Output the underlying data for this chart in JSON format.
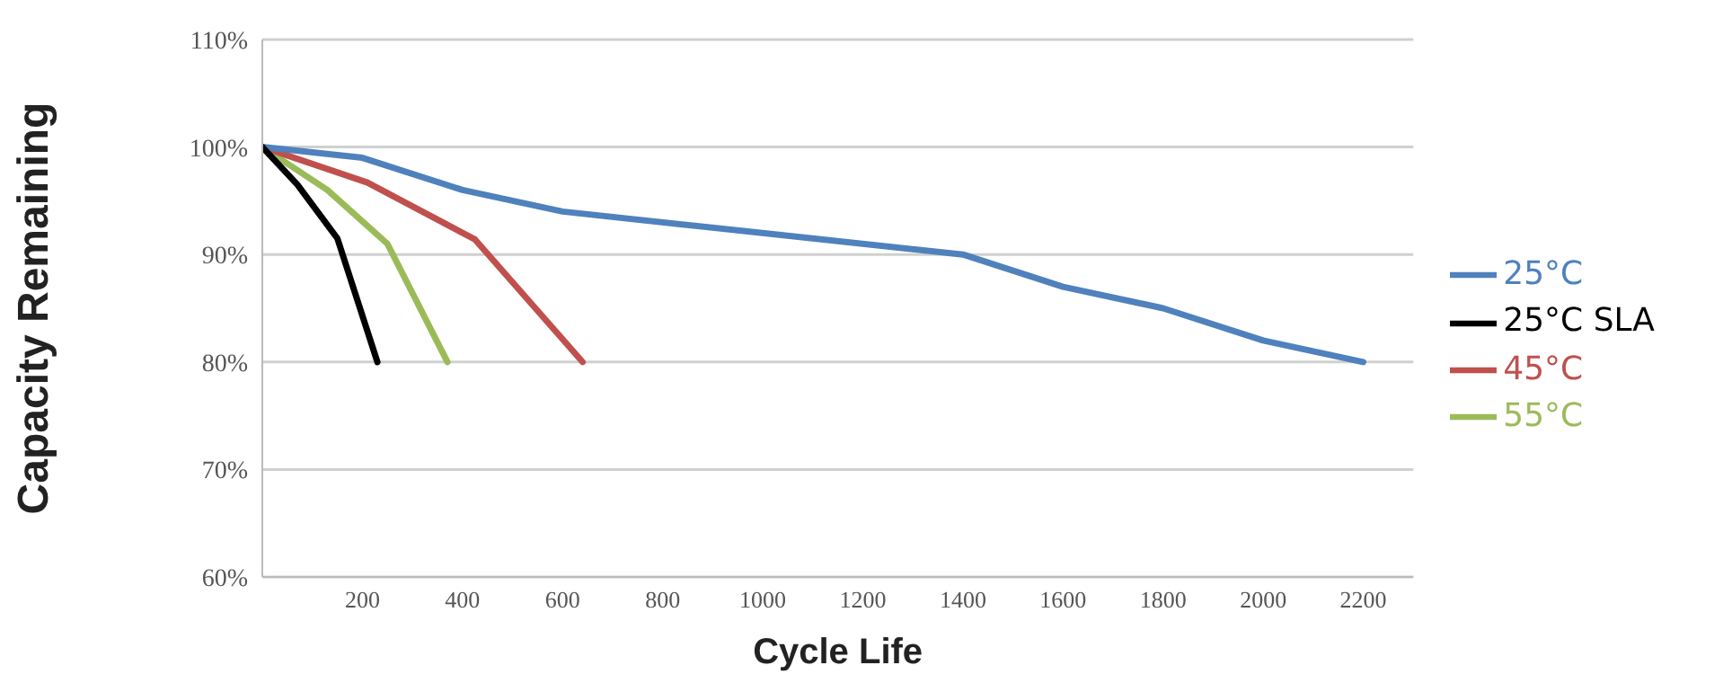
{
  "chart_data": {
    "type": "line",
    "xlabel": "Cycle Life",
    "ylabel": "Capacity Remaining",
    "xlim": [
      0,
      2300
    ],
    "xticks": [
      200,
      400,
      600,
      800,
      1000,
      1200,
      1400,
      1600,
      1800,
      2000,
      2200
    ],
    "ylim": [
      60,
      110
    ],
    "yticks": [
      {
        "value": 60,
        "label": "60%"
      },
      {
        "value": 70,
        "label": "70%"
      },
      {
        "value": 80,
        "label": "80%"
      },
      {
        "value": 90,
        "label": "90%"
      },
      {
        "value": 100,
        "label": "100%"
      },
      {
        "value": 110,
        "label": "110%"
      }
    ],
    "grid": "y",
    "legend": "right",
    "marker": "none",
    "line_style": "solid",
    "series": [
      {
        "name": "55°C",
        "color": "#9bbb59",
        "x": [
          0,
          130,
          250,
          370
        ],
        "values": [
          100,
          96,
          91,
          80
        ]
      },
      {
        "name": "45°C",
        "color": "#c0504d",
        "x": [
          0,
          210,
          425,
          640
        ],
        "values": [
          100,
          96.7,
          91.4,
          80
        ]
      },
      {
        "name": "25°C",
        "color": "#4f81bd",
        "x": [
          0,
          200,
          400,
          600,
          1400,
          1600,
          1800,
          2000,
          2200
        ],
        "values": [
          100,
          99,
          96,
          94,
          90,
          87,
          85,
          82,
          80
        ]
      },
      {
        "name": "25°C SLA",
        "color": "#000000",
        "x": [
          0,
          70,
          150,
          230
        ],
        "values": [
          100,
          96.5,
          91.5,
          80
        ]
      }
    ]
  }
}
